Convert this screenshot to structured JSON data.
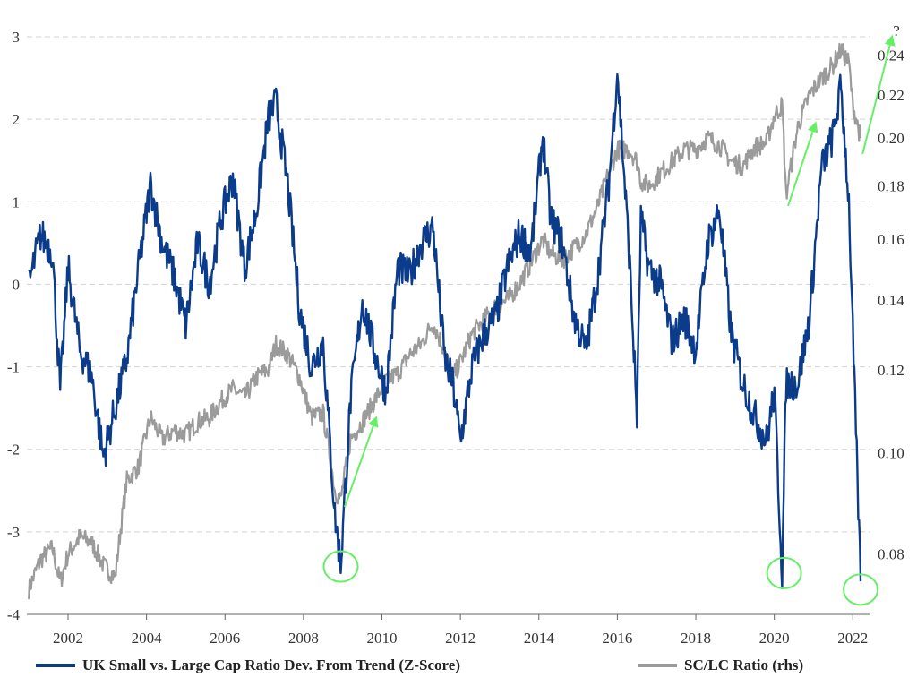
{
  "colors": {
    "primary": "#0b3c8c",
    "secondary": "#9b9b9b",
    "annotation": "#66ee66"
  },
  "chart_data": {
    "type": "line",
    "title": "",
    "x_ticks": [
      "2002",
      "2004",
      "2006",
      "2008",
      "2010",
      "2012",
      "2014",
      "2016",
      "2018",
      "2020",
      "2022"
    ],
    "xlim": [
      2000.95,
      2022.45
    ],
    "left_axis": {
      "ticks": [
        "3",
        "2",
        "1",
        "0",
        "-1",
        "-2",
        "-3",
        "-4"
      ],
      "ylim": [
        -4,
        3
      ]
    },
    "right_axis": {
      "ticks": [
        "0.24",
        "0.22",
        "0.20",
        "0.18",
        "0.16",
        "0.14",
        "0.12",
        "0.10",
        "0.08"
      ],
      "ylim": [
        0.07,
        0.25
      ],
      "scale": "log"
    },
    "grid": true,
    "legend_position": "bottom",
    "series": [
      {
        "name": "UK Small vs. Large Cap Ratio Dev. From Trend (Z-Score)",
        "axis": "left",
        "color": "#0b3c8c",
        "x": [
          2001.0,
          2001.3,
          2001.6,
          2001.8,
          2002.0,
          2002.3,
          2002.6,
          2002.9,
          2003.2,
          2003.5,
          2003.8,
          2004.1,
          2004.4,
          2004.7,
          2005.0,
          2005.3,
          2005.6,
          2005.9,
          2006.2,
          2006.5,
          2006.8,
          2007.1,
          2007.3,
          2007.6,
          2007.9,
          2008.2,
          2008.5,
          2008.8,
          2008.95,
          2009.2,
          2009.5,
          2009.8,
          2010.1,
          2010.4,
          2010.7,
          2011.0,
          2011.3,
          2011.6,
          2011.8,
          2012.0,
          2012.3,
          2012.6,
          2012.9,
          2013.2,
          2013.5,
          2013.8,
          2014.1,
          2014.3,
          2014.6,
          2014.9,
          2015.2,
          2015.5,
          2015.8,
          2016.0,
          2016.3,
          2016.5,
          2016.6,
          2016.8,
          2017.1,
          2017.4,
          2017.7,
          2018.0,
          2018.3,
          2018.6,
          2018.9,
          2019.2,
          2019.5,
          2019.8,
          2020.0,
          2020.2,
          2020.3,
          2020.6,
          2020.9,
          2021.2,
          2021.5,
          2021.7,
          2021.9,
          2022.0,
          2022.2
        ],
        "y": [
          0.0,
          0.6,
          0.4,
          -1.3,
          0.2,
          -0.8,
          -1.1,
          -2.1,
          -1.5,
          -0.9,
          0.2,
          1.2,
          0.5,
          0.1,
          -0.5,
          0.5,
          0.0,
          0.8,
          1.3,
          0.2,
          0.9,
          2.0,
          2.2,
          1.2,
          -0.3,
          -1.0,
          -0.7,
          -2.8,
          -3.4,
          -1.4,
          -0.2,
          -0.8,
          -1.3,
          0.2,
          0.1,
          0.5,
          0.7,
          -0.9,
          -1.2,
          -1.9,
          -1.0,
          -0.6,
          -0.4,
          0.2,
          0.6,
          0.4,
          1.8,
          0.8,
          0.5,
          -0.4,
          -0.8,
          0.1,
          1.3,
          2.6,
          0.4,
          -1.6,
          0.8,
          0.2,
          0.0,
          -0.7,
          -0.4,
          -0.8,
          0.5,
          0.9,
          -0.6,
          -1.2,
          -1.6,
          -1.9,
          -1.3,
          -3.5,
          -1.2,
          -1.2,
          -0.4,
          1.4,
          1.8,
          2.4,
          1.0,
          -0.6,
          -3.6
        ]
      },
      {
        "name": "SC/LC Ratio (rhs)",
        "axis": "right",
        "color": "#9b9b9b",
        "x": [
          2001.0,
          2001.3,
          2001.6,
          2001.8,
          2002.0,
          2002.3,
          2002.6,
          2002.9,
          2003.2,
          2003.5,
          2003.8,
          2004.1,
          2004.4,
          2004.7,
          2005.0,
          2005.3,
          2005.6,
          2005.9,
          2006.2,
          2006.5,
          2006.8,
          2007.1,
          2007.3,
          2007.6,
          2007.9,
          2008.2,
          2008.5,
          2008.8,
          2008.95,
          2009.2,
          2009.5,
          2009.8,
          2010.1,
          2010.4,
          2010.7,
          2011.0,
          2011.3,
          2011.6,
          2011.8,
          2012.0,
          2012.3,
          2012.6,
          2012.9,
          2013.2,
          2013.5,
          2013.8,
          2014.1,
          2014.3,
          2014.6,
          2014.9,
          2015.2,
          2015.5,
          2015.8,
          2016.0,
          2016.3,
          2016.5,
          2016.6,
          2016.8,
          2017.1,
          2017.4,
          2017.7,
          2018.0,
          2018.3,
          2018.6,
          2018.9,
          2019.2,
          2019.5,
          2019.8,
          2020.0,
          2020.2,
          2020.3,
          2020.6,
          2020.9,
          2021.2,
          2021.5,
          2021.7,
          2021.9,
          2022.0,
          2022.2
        ],
        "y": [
          0.074,
          0.079,
          0.081,
          0.075,
          0.08,
          0.083,
          0.082,
          0.078,
          0.076,
          0.094,
          0.097,
          0.108,
          0.103,
          0.105,
          0.104,
          0.107,
          0.108,
          0.112,
          0.115,
          0.113,
          0.118,
          0.12,
          0.127,
          0.124,
          0.118,
          0.108,
          0.109,
          0.092,
          0.09,
          0.103,
          0.107,
          0.112,
          0.117,
          0.119,
          0.124,
          0.127,
          0.133,
          0.125,
          0.118,
          0.122,
          0.13,
          0.134,
          0.138,
          0.14,
          0.145,
          0.152,
          0.16,
          0.155,
          0.153,
          0.157,
          0.162,
          0.172,
          0.186,
          0.195,
          0.195,
          0.19,
          0.182,
          0.18,
          0.185,
          0.19,
          0.195,
          0.195,
          0.2,
          0.197,
          0.19,
          0.188,
          0.196,
          0.198,
          0.21,
          0.215,
          0.176,
          0.205,
          0.22,
          0.228,
          0.235,
          0.243,
          0.236,
          0.215,
          0.2
        ]
      }
    ],
    "annotations": {
      "question_mark": "?",
      "circles": [
        {
          "x": 2008.95,
          "y": -3.42
        },
        {
          "x": 2020.25,
          "y": -3.5
        },
        {
          "x": 2022.2,
          "y": -3.7
        }
      ],
      "arrows": [
        {
          "from": {
            "x": 2009.05,
            "y": -2.7
          },
          "to": {
            "x": 2009.85,
            "y": -1.62
          }
        },
        {
          "from": {
            "x": 2020.35,
            "y": 0.95
          },
          "to": {
            "x": 2021.05,
            "y": 1.95
          }
        },
        {
          "from": {
            "x": 2022.25,
            "y": 1.58
          },
          "to": {
            "x": 2023.0,
            "y": 3.0
          }
        }
      ]
    }
  },
  "legend": {
    "primary_label": "UK Small vs. Large Cap Ratio Dev. From Trend (Z-Score)",
    "secondary_label": "SC/LC Ratio (rhs)"
  }
}
